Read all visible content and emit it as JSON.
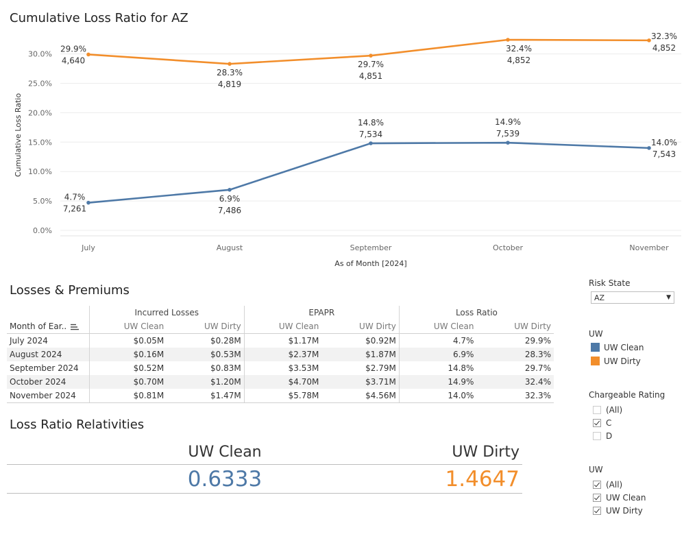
{
  "chart_title": "Cumulative Loss Ratio for AZ",
  "chart_data": {
    "type": "line",
    "title": "Cumulative Loss Ratio for AZ",
    "xlabel": "As of Month [2024]",
    "ylabel": "Cumulative Loss Ratio",
    "categories": [
      "July",
      "August",
      "September",
      "October",
      "November"
    ],
    "y_ticks": [
      "0.0%",
      "5.0%",
      "10.0%",
      "15.0%",
      "20.0%",
      "25.0%",
      "30.0%"
    ],
    "ylim": [
      0,
      34.5
    ],
    "grid": true,
    "series": [
      {
        "name": "UW Dirty",
        "color": "#f28e2b",
        "values": [
          29.9,
          28.3,
          29.7,
          32.4,
          32.3
        ],
        "labels": [
          "29.9%",
          "28.3%",
          "29.7%",
          "32.4%",
          "32.3%"
        ],
        "counts": [
          "4,640",
          "4,819",
          "4,851",
          "4,852",
          "4,852"
        ]
      },
      {
        "name": "UW Clean",
        "color": "#4e79a7",
        "values": [
          4.7,
          6.9,
          14.8,
          14.9,
          14.0
        ],
        "labels": [
          "4.7%",
          "6.9%",
          "14.8%",
          "14.9%",
          "14.0%"
        ],
        "counts": [
          "7,261",
          "7,486",
          "7,534",
          "7,539",
          "7,543"
        ]
      }
    ]
  },
  "table": {
    "title": "Losses & Premiums",
    "row_header": "Month of Ear..",
    "groups": [
      "Incurred Losses",
      "EPAPR",
      "Loss Ratio"
    ],
    "subcols": [
      "UW Clean",
      "UW Dirty"
    ],
    "rows": [
      {
        "month": "July 2024",
        "il_clean": "$0.05M",
        "il_dirty": "$0.28M",
        "ep_clean": "$1.17M",
        "ep_dirty": "$0.92M",
        "lr_clean": "4.7%",
        "lr_dirty": "29.9%"
      },
      {
        "month": "August 2024",
        "il_clean": "$0.16M",
        "il_dirty": "$0.53M",
        "ep_clean": "$2.37M",
        "ep_dirty": "$1.87M",
        "lr_clean": "6.9%",
        "lr_dirty": "28.3%"
      },
      {
        "month": "September 2024",
        "il_clean": "$0.52M",
        "il_dirty": "$0.83M",
        "ep_clean": "$3.53M",
        "ep_dirty": "$2.79M",
        "lr_clean": "14.8%",
        "lr_dirty": "29.7%"
      },
      {
        "month": "October 2024",
        "il_clean": "$0.70M",
        "il_dirty": "$1.20M",
        "ep_clean": "$4.70M",
        "ep_dirty": "$3.71M",
        "lr_clean": "14.9%",
        "lr_dirty": "32.4%"
      },
      {
        "month": "November 2024",
        "il_clean": "$0.81M",
        "il_dirty": "$1.47M",
        "ep_clean": "$5.78M",
        "ep_dirty": "$4.56M",
        "lr_clean": "14.0%",
        "lr_dirty": "32.3%"
      }
    ]
  },
  "relativities": {
    "title": "Loss Ratio Relativities",
    "clean_label": "UW Clean",
    "clean_value": "0.6333",
    "dirty_label": "UW Dirty",
    "dirty_value": "1.4647"
  },
  "filters": {
    "risk_state": {
      "title": "Risk State",
      "value": "AZ"
    },
    "uw_legend": {
      "title": "UW",
      "items": [
        {
          "label": "UW Clean",
          "color": "#4e79a7"
        },
        {
          "label": "UW Dirty",
          "color": "#f28e2b"
        }
      ]
    },
    "chargeable_rating": {
      "title": "Chargeable Rating",
      "options": [
        {
          "label": "(All)",
          "checked": false
        },
        {
          "label": "C",
          "checked": true
        },
        {
          "label": "D",
          "checked": false
        }
      ]
    },
    "uw_filter": {
      "title": "UW",
      "options": [
        {
          "label": "(All)",
          "checked": true
        },
        {
          "label": "UW Clean",
          "checked": true
        },
        {
          "label": "UW Dirty",
          "checked": true
        }
      ]
    }
  }
}
